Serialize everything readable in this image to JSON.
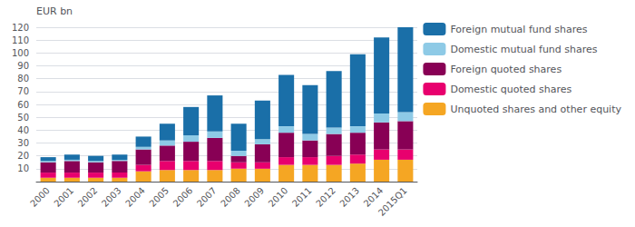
{
  "chart_data": {
    "type": "bar",
    "stacked": true,
    "ylabel": "EUR bn",
    "categories": [
      "2000",
      "2001",
      "2002",
      "2003",
      "2004",
      "2005",
      "2006",
      "2007",
      "2008",
      "2009",
      "2010",
      "2011",
      "2012",
      "2013",
      "2014",
      "2015Q1"
    ],
    "series": [
      {
        "name": "Unquoted shares and other equity",
        "color": "#f5a623",
        "values": [
          3,
          3,
          3,
          3,
          8,
          9,
          9,
          9,
          10,
          10,
          13,
          13,
          13,
          14,
          17,
          17
        ]
      },
      {
        "name": "Domestic quoted shares",
        "color": "#e8006e",
        "values": [
          4,
          4,
          4,
          4,
          5,
          7,
          7,
          7,
          5,
          5,
          6,
          6,
          7,
          7,
          8,
          8
        ]
      },
      {
        "name": "Foreign quoted shares",
        "color": "#880055",
        "values": [
          8,
          9,
          8,
          9,
          12,
          12,
          15,
          18,
          5,
          14,
          19,
          13,
          17,
          17,
          21,
          22
        ]
      },
      {
        "name": "Domestic mutual fund shares",
        "color": "#8ecae6",
        "values": [
          1,
          1,
          1,
          1,
          2,
          4,
          5,
          5,
          4,
          4,
          5,
          5,
          5,
          5,
          7,
          7
        ]
      },
      {
        "name": "Foreign mutual fund shares",
        "color": "#1a6fa8",
        "values": [
          3,
          4,
          4,
          4,
          8,
          13,
          22,
          28,
          21,
          30,
          40,
          38,
          44,
          56,
          59,
          66
        ]
      }
    ],
    "ylim": [
      0,
      120
    ],
    "yticks": [
      {
        "value": 0,
        "label": ""
      },
      10,
      20,
      30,
      40,
      50,
      60,
      70,
      80,
      90,
      100,
      110,
      120
    ],
    "grid": true,
    "legend": "right"
  }
}
